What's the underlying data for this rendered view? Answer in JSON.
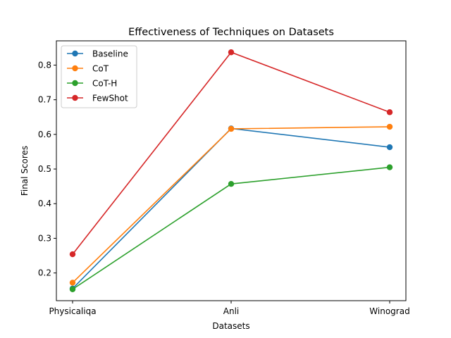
{
  "chart_data": {
    "type": "line",
    "title": "Effectiveness of Techniques on Datasets",
    "xlabel": "Datasets",
    "ylabel": "Final Scores",
    "categories": [
      "Physicaliqa",
      "Anli",
      "Winograd"
    ],
    "ylim": [
      0.12,
      0.87
    ],
    "yticks": [
      0.2,
      0.3,
      0.4,
      0.5,
      0.6,
      0.7,
      0.8
    ],
    "ytick_labels": [
      "0.2",
      "0.3",
      "0.4",
      "0.5",
      "0.6",
      "0.7",
      "0.8"
    ],
    "grid": false,
    "legend_position": "top-left",
    "series": [
      {
        "name": "Baseline",
        "color": "#1f77b4",
        "values": [
          0.155,
          0.617,
          0.563
        ]
      },
      {
        "name": "CoT",
        "color": "#ff7f0e",
        "values": [
          0.172,
          0.616,
          0.622
        ]
      },
      {
        "name": "CoT-H",
        "color": "#2ca02c",
        "values": [
          0.153,
          0.457,
          0.505
        ]
      },
      {
        "name": "FewShot",
        "color": "#d62728",
        "values": [
          0.254,
          0.837,
          0.664
        ]
      }
    ]
  }
}
